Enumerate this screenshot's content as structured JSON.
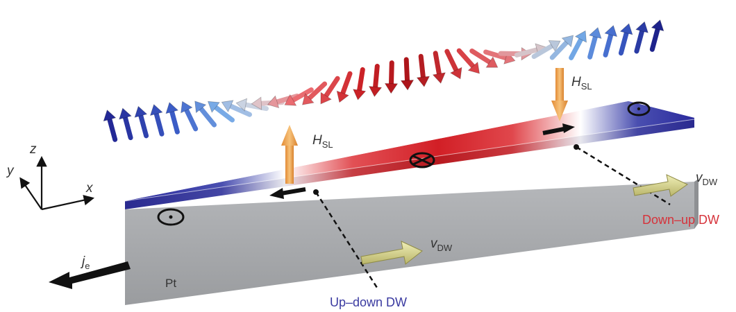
{
  "labels": {
    "axis_z": "z",
    "axis_y": "y",
    "axis_x": "x",
    "h_sl_main": "H",
    "h_sl_sub": "SL",
    "h_sl_right_main": "H",
    "h_sl_right_sub": "SL",
    "v_dw_main": "v",
    "v_dw_sub": "DW",
    "v_dw_right_main": "v",
    "v_dw_right_sub": "DW",
    "j_main": "j",
    "j_sub": "e",
    "pt": "Pt",
    "up_down_dw": "Up–down DW",
    "down_up_dw": "Down–up DW"
  },
  "colors": {
    "up_domain": "#2b2b9e",
    "down_domain": "#d21f26",
    "wall_white": "#ffffff",
    "pt_layer": "#a7a9ac",
    "field_arrow": "#f0a04b",
    "velocity_arrow": "#d9d68a",
    "current_arrow": "#111111",
    "up_down_text": "#3a3aa0",
    "down_up_text": "#d6323a"
  },
  "icons": {
    "left_domain": "dot-in-circle-icon",
    "middle_domain": "cross-in-circle-icon",
    "right_domain": "dot-in-circle-icon"
  }
}
